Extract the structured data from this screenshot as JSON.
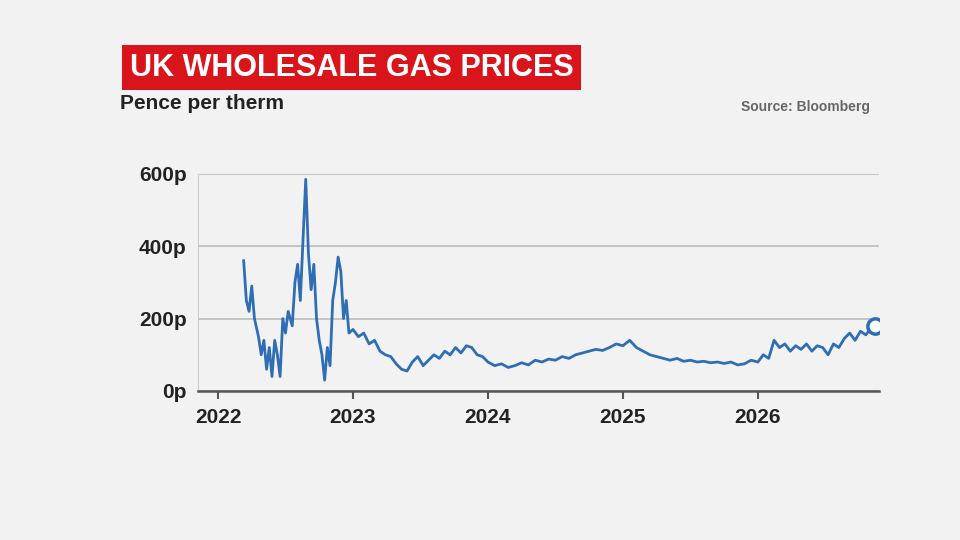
{
  "chart_data": {
    "type": "line",
    "title": "UK WHOLESALE GAS PRICES",
    "subtitle": "Pence per therm",
    "source": "Source: Bloomberg",
    "color": "#2f6db5",
    "grid": true,
    "x": [
      2022.19,
      2022.21,
      2022.23,
      2022.25,
      2022.27,
      2022.3,
      2022.32,
      2022.34,
      2022.36,
      2022.38,
      2022.4,
      2022.42,
      2022.44,
      2022.46,
      2022.48,
      2022.5,
      2022.52,
      2022.55,
      2022.57,
      2022.59,
      2022.61,
      2022.63,
      2022.65,
      2022.67,
      2022.69,
      2022.71,
      2022.73,
      2022.75,
      2022.77,
      2022.79,
      2022.81,
      2022.83,
      2022.85,
      2022.87,
      2022.89,
      2022.91,
      2022.93,
      2022.95,
      2022.97,
      2023.0,
      2023.04,
      2023.08,
      2023.12,
      2023.16,
      2023.2,
      2023.24,
      2023.28,
      2023.32,
      2023.36,
      2023.4,
      2023.44,
      2023.48,
      2023.52,
      2023.56,
      2023.6,
      2023.64,
      2023.68,
      2023.72,
      2023.76,
      2023.8,
      2023.84,
      2023.88,
      2023.92,
      2023.96,
      2024.0,
      2024.05,
      2024.1,
      2024.15,
      2024.2,
      2024.25,
      2024.3,
      2024.35,
      2024.4,
      2024.45,
      2024.5,
      2024.55,
      2024.6,
      2024.65,
      2024.7,
      2024.75,
      2024.8,
      2024.85,
      2024.9,
      2024.95,
      2025.0,
      2025.05,
      2025.1,
      2025.15,
      2025.2,
      2025.25,
      2025.3,
      2025.35,
      2025.4,
      2025.45,
      2025.5,
      2025.55,
      2025.6,
      2025.65,
      2025.7,
      2025.75,
      2025.8,
      2025.85,
      2025.9,
      2025.95,
      2026.0,
      2026.04,
      2026.08,
      2026.12,
      2026.16,
      2026.2,
      2026.24,
      2026.28,
      2026.32,
      2026.36,
      2026.4,
      2026.44,
      2026.48,
      2026.52,
      2026.56,
      2026.6,
      2026.64,
      2026.68,
      2026.72,
      2026.76,
      2026.8,
      2026.84,
      2026.87
    ],
    "values": [
      360,
      250,
      220,
      290,
      200,
      150,
      100,
      140,
      60,
      120,
      40,
      140,
      100,
      40,
      200,
      160,
      220,
      180,
      300,
      350,
      250,
      420,
      585,
      380,
      280,
      350,
      200,
      140,
      100,
      30,
      120,
      70,
      250,
      300,
      370,
      330,
      200,
      250,
      160,
      170,
      150,
      160,
      130,
      140,
      110,
      100,
      95,
      75,
      60,
      55,
      80,
      95,
      70,
      85,
      100,
      90,
      110,
      100,
      120,
      105,
      125,
      120,
      100,
      95,
      80,
      70,
      75,
      65,
      70,
      78,
      72,
      85,
      80,
      88,
      85,
      95,
      90,
      100,
      105,
      110,
      115,
      112,
      120,
      130,
      125,
      140,
      120,
      110,
      100,
      95,
      90,
      85,
      90,
      82,
      85,
      80,
      82,
      78,
      80,
      76,
      80,
      72,
      75,
      85,
      80,
      100,
      90,
      140,
      120,
      130,
      110,
      125,
      115,
      130,
      110,
      125,
      120,
      100,
      130,
      120,
      145,
      160,
      140,
      165,
      155,
      175,
      180
    ],
    "xlim": [
      2021.85,
      2026.9
    ],
    "xticks": [
      2022,
      2023,
      2024,
      2025,
      2026
    ],
    "ylim": [
      0,
      600
    ],
    "yticks": [
      {
        "value": 0,
        "label": "0p"
      },
      {
        "value": 200,
        "label": "200p"
      },
      {
        "value": 400,
        "label": "400p"
      },
      {
        "value": 600,
        "label": "600p"
      }
    ]
  }
}
